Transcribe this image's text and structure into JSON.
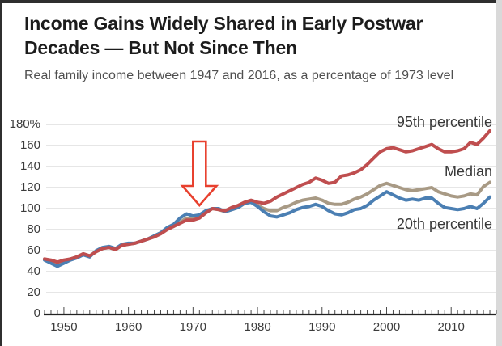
{
  "header": {
    "title_line1": "Income Gains Widely Shared in Early Postwar",
    "title_line2": "Decades — But Not Since Then",
    "subtitle": "Real family income between 1947 and 2016, as a percentage of 1973 level"
  },
  "chart_data": {
    "type": "line",
    "title": "Income Gains Widely Shared in Early Postwar Decades — But Not Since Then",
    "subtitle": "Real family income between 1947 and 2016, as a percentage of 1973 level",
    "xlim": [
      1947,
      2017
    ],
    "ylim": [
      0,
      185
    ],
    "grid": "horizontal",
    "legend_position": "inline-right",
    "years": [
      1947,
      1948,
      1949,
      1950,
      1951,
      1952,
      1953,
      1954,
      1955,
      1956,
      1957,
      1958,
      1959,
      1960,
      1961,
      1962,
      1963,
      1964,
      1965,
      1966,
      1967,
      1968,
      1969,
      1970,
      1971,
      1972,
      1973,
      1974,
      1975,
      1976,
      1977,
      1978,
      1979,
      1980,
      1981,
      1982,
      1983,
      1984,
      1985,
      1986,
      1987,
      1988,
      1989,
      1990,
      1991,
      1992,
      1993,
      1994,
      1995,
      1996,
      1997,
      1998,
      1999,
      2000,
      2001,
      2002,
      2003,
      2004,
      2005,
      2006,
      2007,
      2008,
      2009,
      2010,
      2011,
      2012,
      2013,
      2014,
      2015,
      2016
    ],
    "series": [
      {
        "name": "95th percentile",
        "color": "#bf4e4f",
        "values": [
          52,
          51,
          49,
          51,
          52,
          54,
          57,
          55,
          59,
          62,
          63,
          61,
          65,
          66,
          67,
          69,
          71,
          73,
          76,
          80,
          83,
          86,
          89,
          89,
          91,
          96,
          100,
          99,
          98,
          101,
          103,
          106,
          108,
          106,
          105,
          107,
          111,
          114,
          117,
          120,
          123,
          125,
          129,
          127,
          124,
          125,
          131,
          132,
          134,
          137,
          142,
          148,
          154,
          157,
          158,
          156,
          154,
          155,
          157,
          159,
          161,
          157,
          154,
          154,
          155,
          157,
          163,
          161,
          167,
          174
        ]
      },
      {
        "name": "Median",
        "color": "#a89a85",
        "values": [
          52,
          50,
          48,
          50,
          52,
          54,
          57,
          55,
          59,
          62,
          63,
          61,
          65,
          66,
          67,
          69,
          71,
          74,
          77,
          81,
          83,
          87,
          91,
          90,
          91,
          96,
          100,
          99,
          97,
          99,
          101,
          105,
          106,
          103,
          100,
          98,
          98,
          101,
          103,
          106,
          108,
          109,
          110,
          108,
          105,
          104,
          104,
          106,
          109,
          111,
          114,
          118,
          122,
          124,
          122,
          120,
          118,
          117,
          118,
          119,
          120,
          116,
          114,
          112,
          111,
          112,
          114,
          113,
          121,
          125
        ]
      },
      {
        "name": "20th percentile",
        "color": "#4b7fb3",
        "values": [
          51,
          48,
          45,
          48,
          51,
          53,
          56,
          54,
          60,
          63,
          64,
          62,
          66,
          67,
          67,
          69,
          71,
          74,
          77,
          82,
          85,
          91,
          95,
          93,
          94,
          98,
          100,
          100,
          97,
          99,
          101,
          105,
          106,
          102,
          97,
          93,
          92,
          94,
          96,
          99,
          101,
          102,
          104,
          102,
          98,
          95,
          94,
          96,
          99,
          100,
          103,
          108,
          112,
          116,
          113,
          110,
          108,
          109,
          108,
          110,
          110,
          105,
          101,
          100,
          99,
          100,
          102,
          100,
          105,
          111
        ]
      }
    ],
    "y_ticks": [
      {
        "value": 0,
        "label": "0"
      },
      {
        "value": 20,
        "label": "20"
      },
      {
        "value": 40,
        "label": "40"
      },
      {
        "value": 60,
        "label": "60"
      },
      {
        "value": 80,
        "label": "80"
      },
      {
        "value": 100,
        "label": "100"
      },
      {
        "value": 120,
        "label": "120"
      },
      {
        "value": 140,
        "label": "140"
      },
      {
        "value": 160,
        "label": "160"
      },
      {
        "value": 180,
        "label": "180%"
      }
    ],
    "x_ticks": [
      {
        "year": 1950,
        "label": "1950"
      },
      {
        "year": 1960,
        "label": "1960"
      },
      {
        "year": 1970,
        "label": "1970"
      },
      {
        "year": 1980,
        "label": "1980"
      },
      {
        "year": 1990,
        "label": "1990"
      },
      {
        "year": 2000,
        "label": "2000"
      },
      {
        "year": 2010,
        "label": "2010"
      }
    ],
    "annotation": {
      "shape": "down-arrow",
      "color": "#e8402e",
      "points_at_year": 1971,
      "points_at_value": 100
    }
  }
}
